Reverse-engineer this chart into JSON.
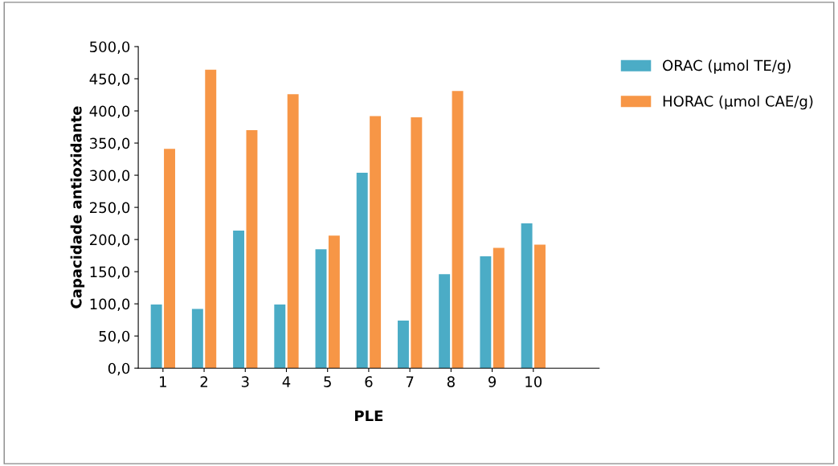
{
  "chart_data": {
    "type": "bar",
    "xlabel": "PLE",
    "ylabel": "Capacidade antioxidante",
    "categories": [
      "1",
      "2",
      "3",
      "4",
      "5",
      "6",
      "7",
      "8",
      "9",
      "10"
    ],
    "series": [
      {
        "name": "ORAC (µmol TE/g)",
        "color": "#4bacc6",
        "values": [
          99,
          92,
          214,
          99,
          185,
          304,
          74,
          146,
          174,
          225
        ]
      },
      {
        "name": "HORAC (µmol CAE/g)",
        "color": "#f79646",
        "values": [
          341,
          464,
          370,
          426,
          206,
          392,
          390,
          431,
          187,
          192
        ]
      }
    ],
    "ylim": [
      0,
      500
    ],
    "yticks": [
      {
        "value": 0,
        "label": "0,0"
      },
      {
        "value": 50,
        "label": "50,0"
      },
      {
        "value": 100,
        "label": "100,0"
      },
      {
        "value": 150,
        "label": "150,0"
      },
      {
        "value": 200,
        "label": "200,0"
      },
      {
        "value": 250,
        "label": "250,0"
      },
      {
        "value": 300,
        "label": "300,0"
      },
      {
        "value": 350,
        "label": "350,0"
      },
      {
        "value": 400,
        "label": "400,0"
      },
      {
        "value": 450,
        "label": "450,0"
      },
      {
        "value": 500,
        "label": "500,0"
      }
    ],
    "grid": false,
    "legend": "right"
  }
}
